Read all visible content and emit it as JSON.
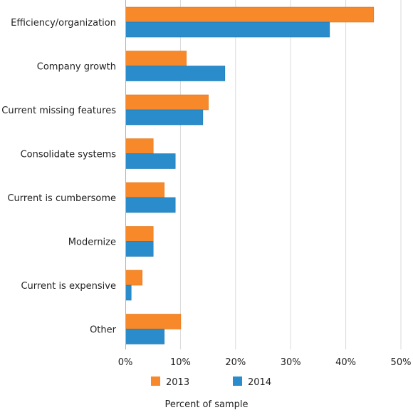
{
  "chart_data": {
    "type": "bar",
    "orientation": "horizontal",
    "categories": [
      "Efficiency/organization",
      "Company growth",
      "Current missing features",
      "Consolidate systems",
      "Current is cumbersome",
      "Modernize",
      "Current is expensive",
      "Other"
    ],
    "series": [
      {
        "name": "2013",
        "color": "#f7892b",
        "values": [
          45,
          11,
          15,
          5,
          7,
          5,
          3,
          10
        ]
      },
      {
        "name": "2014",
        "color": "#2a8ccb",
        "values": [
          37,
          18,
          14,
          9,
          9,
          5,
          1,
          7
        ]
      }
    ],
    "x_ticks": [
      "0%",
      "10%",
      "20%",
      "30%",
      "40%",
      "50%"
    ],
    "xlim": [
      0,
      50
    ],
    "xlabel": "Percent of sample",
    "grid": true,
    "legend_position": "bottom"
  }
}
